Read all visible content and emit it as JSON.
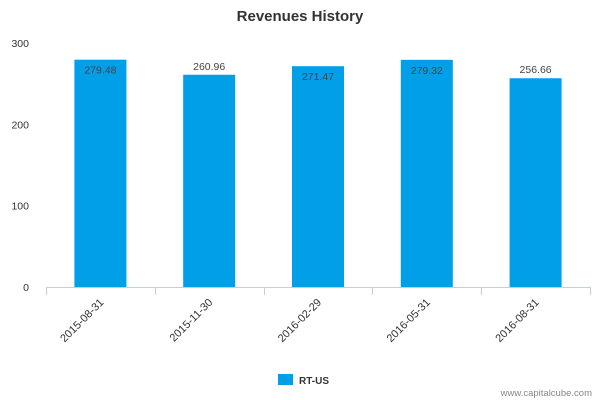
{
  "chart_data": {
    "type": "bar",
    "title": "Revenues History",
    "categories": [
      "2015-08-31",
      "2015-11-30",
      "2016-02-29",
      "2016-05-31",
      "2016-08-31"
    ],
    "series": [
      {
        "name": "RT-US",
        "values": [
          279.48,
          260.96,
          271.47,
          279.32,
          256.66
        ],
        "color": "#009fe8"
      }
    ],
    "data_labels": [
      "279.48",
      "260.96",
      "271.47",
      "279.32",
      "256.66"
    ],
    "ylim": [
      0,
      300
    ],
    "yticks": [
      0,
      100,
      200,
      300
    ],
    "ytick_labels": [
      "0",
      "100",
      "200",
      "300"
    ],
    "xlabel": "",
    "ylabel": "",
    "grid": false,
    "legend_position": "bottom-center"
  },
  "watermark": "www.capitalcube.com"
}
